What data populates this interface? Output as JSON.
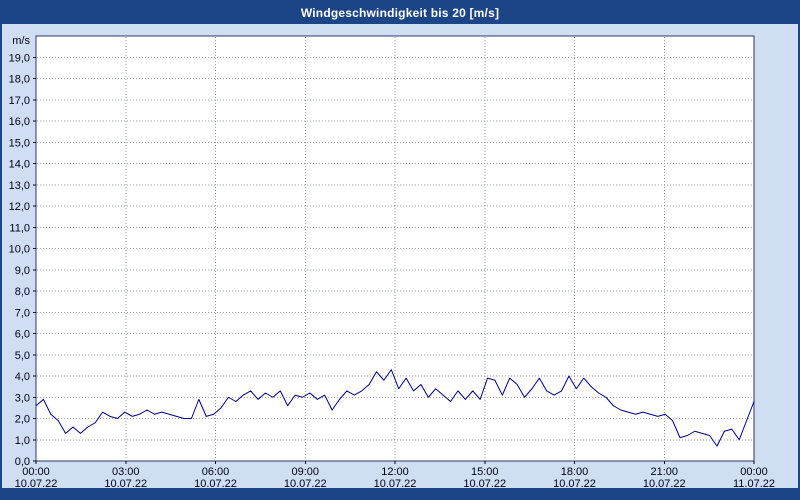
{
  "window": {
    "title": "Windgeschwindigkeit bis 20 [m/s]"
  },
  "colors": {
    "title_bar": "#1c4587",
    "background": "#cfdef2",
    "plot_bg": "#ffffff",
    "plot_border": "#2b3a6b",
    "grid": "#9aa0a6",
    "line": "#00008b",
    "text": "#000020"
  },
  "chart_data": {
    "type": "line",
    "title": "Windgeschwindigkeit bis 20 [m/s]",
    "ylabel": "m/s",
    "ylim": [
      0,
      20
    ],
    "ytick_step": 1,
    "ytick_labels": [
      "0,0",
      "1,0",
      "2,0",
      "3,0",
      "4,0",
      "5,0",
      "6,0",
      "7,0",
      "8,0",
      "9,0",
      "10,0",
      "11,0",
      "12,0",
      "13,0",
      "14,0",
      "15,0",
      "16,0",
      "17,0",
      "18,0",
      "19,0"
    ],
    "x_tick_times": [
      "00:00",
      "03:00",
      "06:00",
      "09:00",
      "12:00",
      "15:00",
      "18:00",
      "21:00",
      "00:00"
    ],
    "x_tick_dates": [
      "10.07.22",
      "10.07.22",
      "10.07.22",
      "10.07.22",
      "10.07.22",
      "10.07.22",
      "10.07.22",
      "10.07.22",
      "11.07.22"
    ],
    "x_range_hours": 24,
    "grid": true,
    "legend": "none",
    "series": [
      {
        "name": "Windgeschwindigkeit",
        "unit": "m/s",
        "sample_interval_min": 15,
        "values": [
          2.6,
          2.9,
          2.2,
          1.9,
          1.3,
          1.6,
          1.3,
          1.6,
          1.8,
          2.3,
          2.1,
          2.0,
          2.3,
          2.1,
          2.2,
          2.4,
          2.2,
          2.3,
          2.2,
          2.1,
          2.0,
          2.0,
          2.9,
          2.1,
          2.2,
          2.5,
          3.0,
          2.8,
          3.1,
          3.3,
          2.9,
          3.2,
          3.0,
          3.3,
          2.6,
          3.1,
          3.0,
          3.2,
          2.9,
          3.1,
          2.4,
          2.9,
          3.3,
          3.1,
          3.3,
          3.6,
          4.2,
          3.8,
          4.3,
          3.4,
          3.9,
          3.3,
          3.6,
          3.0,
          3.4,
          3.1,
          2.8,
          3.3,
          2.9,
          3.3,
          2.9,
          3.9,
          3.8,
          3.1,
          3.9,
          3.6,
          3.0,
          3.4,
          3.9,
          3.3,
          3.1,
          3.3,
          4.0,
          3.4,
          3.9,
          3.5,
          3.2,
          3.0,
          2.6,
          2.4,
          2.3,
          2.2,
          2.3,
          2.2,
          2.1,
          2.2,
          1.9,
          1.1,
          1.2,
          1.4,
          1.3,
          1.2,
          0.7,
          1.4,
          1.5,
          1.0,
          1.9,
          2.8
        ]
      }
    ]
  }
}
